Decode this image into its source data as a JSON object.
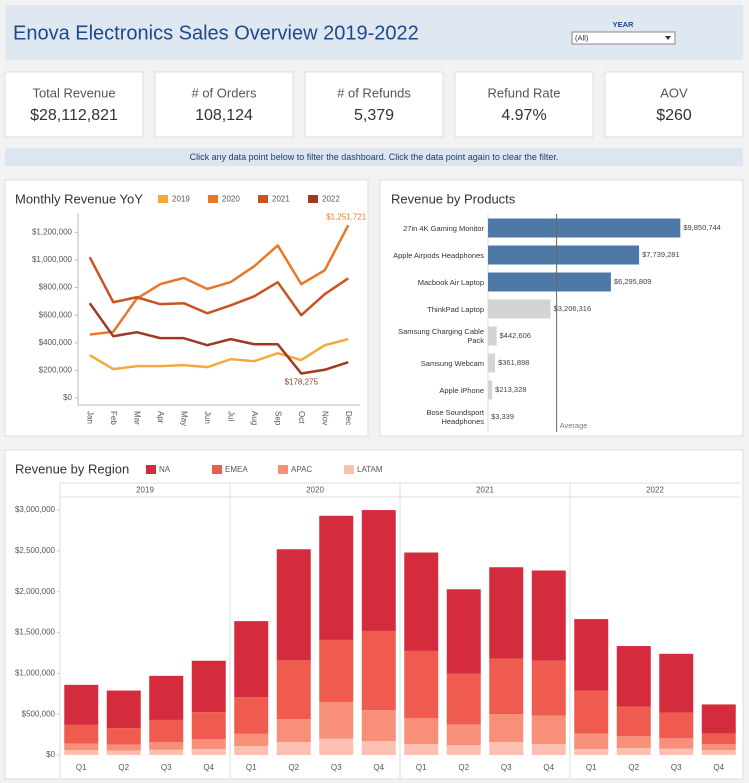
{
  "header": {
    "title": "Enova Electronics Sales Overview 2019-2022",
    "filter_label": "YEAR",
    "filter_value": "(All)"
  },
  "kpis": [
    {
      "label": "Total Revenue",
      "value": "$28,112,821"
    },
    {
      "label": "# of Orders",
      "value": "108,124"
    },
    {
      "label": "# of Refunds",
      "value": "5,379"
    },
    {
      "label": "Refund Rate",
      "value": "4.97%"
    },
    {
      "label": "AOV",
      "value": "$260"
    }
  ],
  "banner": "Click any data point below to filter the dashboard. Click the data point again to clear the filter.",
  "chart_data": [
    {
      "type": "line",
      "title": "Monthly Revenue YoY",
      "categories": [
        "Jan",
        "Feb",
        "Mar",
        "Apr",
        "May",
        "Jun",
        "Jul",
        "Aug",
        "Sep",
        "Oct",
        "Nov",
        "Dec"
      ],
      "series": [
        {
          "name": "2019",
          "color": "#f5a83e",
          "values": [
            311000,
            210000,
            231000,
            231000,
            239000,
            224000,
            282000,
            267000,
            325000,
            275000,
            383000,
            427000
          ]
        },
        {
          "name": "2020",
          "color": "#e8772a",
          "values": [
            460000,
            480000,
            720000,
            825000,
            870000,
            790000,
            840000,
            955000,
            1105000,
            825000,
            925000,
            1251721
          ],
          "value_labels": [
            null,
            null,
            null,
            null,
            null,
            null,
            null,
            null,
            null,
            null,
            null,
            "$1,251,721"
          ]
        },
        {
          "name": "2021",
          "color": "#c9541f",
          "values": [
            1020000,
            694000,
            730000,
            680000,
            687000,
            614000,
            672000,
            737000,
            839000,
            600000,
            752000,
            867000
          ]
        },
        {
          "name": "2022",
          "color": "#9e3a22",
          "values": [
            687000,
            448000,
            477000,
            434000,
            434000,
            383000,
            427000,
            390000,
            390000,
            178275,
            205000,
            260000
          ],
          "value_labels": [
            null,
            null,
            null,
            null,
            null,
            null,
            null,
            null,
            null,
            "$178,275",
            null,
            null
          ]
        }
      ],
      "ylim": [
        -50000,
        1340000
      ],
      "yticks": [
        {
          "value": 0,
          "label": "$0"
        },
        {
          "value": 200000,
          "label": "$200,000"
        },
        {
          "value": 400000,
          "label": "$400,000"
        },
        {
          "value": 600000,
          "label": "$600,000"
        },
        {
          "value": 800000,
          "label": "$800,000"
        },
        {
          "value": 1000000,
          "label": "$1,000,000"
        },
        {
          "value": 1200000,
          "label": "$1,200,000"
        }
      ],
      "grid": false
    },
    {
      "type": "hbar",
      "title": "Revenue by Products",
      "categories": [
        "27in 4K Gaming Monitor",
        "Apple Airpods Headphones",
        "Macbook Air Laptop",
        "ThinkPad Laptop",
        "Samsung Charging Cable Pack",
        "Samsung Webcam",
        "Apple iPhone",
        "Bose Soundsport Headphones"
      ],
      "values": [
        9850744,
        7739281,
        6295809,
        3206316,
        442606,
        361898,
        213328,
        3339
      ],
      "value_labels": [
        "$9,850,744",
        "$7,739,281",
        "$6,295,809",
        "$3,206,316",
        "$442,606",
        "$361,898",
        "$213,328",
        "$3,339"
      ],
      "colors": [
        "#4e79a7",
        "#4e79a7",
        "#4e79a7",
        "#d4d4d4",
        "#d4d4d4",
        "#d4d4d4",
        "#d4d4d4",
        "#d4d4d4"
      ],
      "xlim": [
        0,
        10500000
      ],
      "reference_line": {
        "label": "Average"
      }
    },
    {
      "type": "stacked_bar",
      "title": "Revenue by Region",
      "groups": [
        "2019",
        "2020",
        "2021",
        "2022"
      ],
      "categories": [
        "Q1",
        "Q2",
        "Q3",
        "Q4",
        "Q1",
        "Q2",
        "Q3",
        "Q4",
        "Q1",
        "Q2",
        "Q3",
        "Q4",
        "Q1",
        "Q2",
        "Q3",
        "Q4"
      ],
      "series": [
        {
          "name": "NA",
          "color": "#d42c3d",
          "values": [
            490000,
            460000,
            540000,
            630000,
            930000,
            1360000,
            1520000,
            1480000,
            1205000,
            1035000,
            1120000,
            1105000,
            875000,
            740000,
            720000,
            355000
          ]
        },
        {
          "name": "EMEA",
          "color": "#ef5b4e",
          "values": [
            230000,
            200000,
            270000,
            330000,
            450000,
            720000,
            760000,
            970000,
            825000,
            620000,
            680000,
            670000,
            525000,
            365000,
            315000,
            130000
          ]
        },
        {
          "name": "APAC",
          "color": "#f78f79",
          "values": [
            80000,
            75000,
            95000,
            120000,
            150000,
            280000,
            450000,
            380000,
            315000,
            255000,
            340000,
            350000,
            190000,
            145000,
            125000,
            75000
          ]
        },
        {
          "name": "LATAM",
          "color": "#fbc0b1",
          "values": [
            60000,
            55000,
            65000,
            75000,
            110000,
            160000,
            200000,
            170000,
            135000,
            120000,
            160000,
            135000,
            75000,
            85000,
            80000,
            60000
          ]
        }
      ],
      "ylim": [
        -85000,
        3160000
      ],
      "yticks": [
        {
          "value": 0,
          "label": "$0"
        },
        {
          "value": 500000,
          "label": "$500,000"
        },
        {
          "value": 1000000,
          "label": "$1,000,000"
        },
        {
          "value": 1500000,
          "label": "$1,500,000"
        },
        {
          "value": 2000000,
          "label": "$2,000,000"
        },
        {
          "value": 2500000,
          "label": "$2,500,000"
        },
        {
          "value": 3000000,
          "label": "$3,000,000"
        }
      ],
      "grid": false
    }
  ]
}
